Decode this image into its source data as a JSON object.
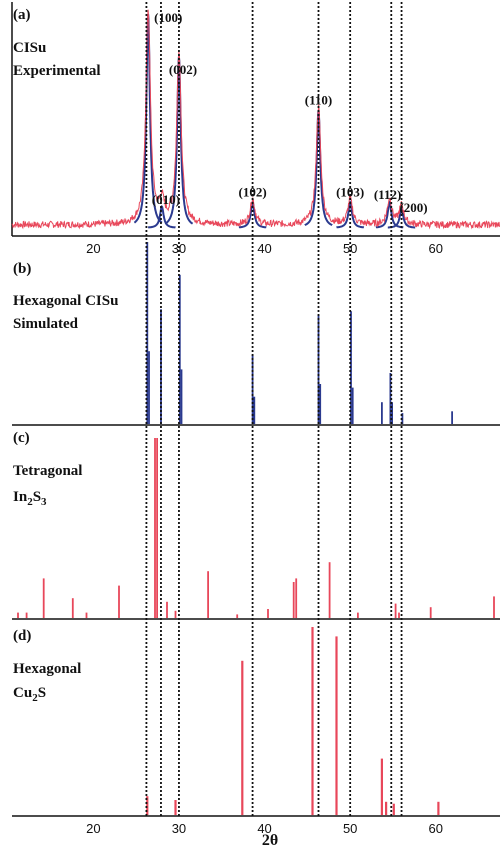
{
  "figure": {
    "xlabel": "2θ",
    "x_ticks": [
      20,
      30,
      40,
      50,
      60
    ],
    "dashed_guides_2theta": [
      26.2,
      27.9,
      30.0,
      38.6,
      46.3,
      50.0,
      54.8,
      56.0
    ]
  },
  "chart_data": [
    {
      "id": "a",
      "type": "line",
      "panel_label": "(a)",
      "title_lines": [
        "CISu",
        "Experimental"
      ],
      "xlim": [
        10.5,
        67.5
      ],
      "colors": {
        "experimental": "#e8475a",
        "fit_peaks": "#2b3a8f"
      },
      "peaks": [
        {
          "x": 26.4,
          "y": 100,
          "hkl": "(100)"
        },
        {
          "x": 28.0,
          "y": 10,
          "hkl": "(010)"
        },
        {
          "x": 30.0,
          "y": 80,
          "hkl": "(002)"
        },
        {
          "x": 38.6,
          "y": 12,
          "hkl": "(102)"
        },
        {
          "x": 46.3,
          "y": 55,
          "hkl": "(110)"
        },
        {
          "x": 50.0,
          "y": 12,
          "hkl": "(103)"
        },
        {
          "x": 54.6,
          "y": 12,
          "hkl": "(112)"
        },
        {
          "x": 56.0,
          "y": 9,
          "hkl": "(200)"
        }
      ]
    },
    {
      "id": "b",
      "type": "bar",
      "panel_label": "(b)",
      "title_lines": [
        "Hexagonal CISu",
        "Simulated"
      ],
      "xlim": [
        10.5,
        67.5
      ],
      "color": "#2b3a8f",
      "x": [
        26.3,
        26.5,
        27.9,
        30.1,
        30.3,
        38.6,
        38.8,
        46.3,
        46.5,
        50.1,
        50.3,
        53.7,
        54.7,
        54.9,
        56.1,
        61.9
      ],
      "values": [
        100,
        40,
        63,
        82,
        30,
        38,
        15,
        60,
        22,
        62,
        20,
        12,
        28,
        12,
        6,
        7
      ]
    },
    {
      "id": "c",
      "type": "bar",
      "panel_label": "(c)",
      "title_lines": [
        "Tetragonal",
        "In2S3"
      ],
      "xlim": [
        10.5,
        67.5
      ],
      "color": "#e8475a",
      "x": [
        11.2,
        12.2,
        14.2,
        17.6,
        19.2,
        23.0,
        27.2,
        27.45,
        28.6,
        29.6,
        33.4,
        36.8,
        40.4,
        43.4,
        43.7,
        47.6,
        50.9,
        55.3,
        55.7,
        59.4,
        66.8
      ],
      "values": [
        3,
        3,
        22,
        11,
        3,
        18,
        100,
        100,
        9,
        4,
        26,
        2,
        5,
        20,
        22,
        31,
        3,
        8,
        3,
        6,
        12
      ]
    },
    {
      "id": "d",
      "type": "bar",
      "panel_label": "(d)",
      "title_lines": [
        "Hexagonal",
        "Cu2S"
      ],
      "xlim": [
        10.5,
        67.5
      ],
      "color": "#e8475a",
      "x": [
        26.3,
        29.6,
        37.4,
        45.6,
        48.4,
        53.7,
        54.2,
        55.1,
        60.3
      ],
      "values": [
        10,
        8,
        82,
        100,
        95,
        30,
        7,
        6,
        7
      ]
    }
  ]
}
